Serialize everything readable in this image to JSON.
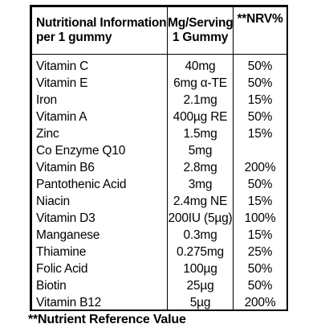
{
  "header": {
    "name_line1": "Nutritional Information",
    "name_line2": "per 1 gummy",
    "amount_line1": "Mg/Serving",
    "amount_line2": "1 Gummy",
    "nrv": "**NRV%"
  },
  "rows": [
    {
      "name": "Vitamin C",
      "amount": "40mg",
      "nrv": "50%"
    },
    {
      "name": "Vitamin E",
      "amount": "6mg α-TE",
      "nrv": "50%"
    },
    {
      "name": "Iron",
      "amount": "2.1mg",
      "nrv": "15%"
    },
    {
      "name": "Vitamin A",
      "amount": "400µg RE",
      "nrv": "50%"
    },
    {
      "name": "Zinc",
      "amount": "1.5mg",
      "nrv": "15%"
    },
    {
      "name": "Co Enzyme Q10",
      "amount": "5mg",
      "nrv": ""
    },
    {
      "name": "Vitamin B6",
      "amount": "2.8mg",
      "nrv": "200%"
    },
    {
      "name": "Pantothenic Acid",
      "amount": "3mg",
      "nrv": "50%"
    },
    {
      "name": "Niacin",
      "amount": "2.4mg NE",
      "nrv": "15%"
    },
    {
      "name": "Vitamin D3",
      "amount": "200IU (5µg)",
      "nrv": "100%"
    },
    {
      "name": "Manganese",
      "amount": "0.3mg",
      "nrv": "15%"
    },
    {
      "name": "Thiamine",
      "amount": "0.275mg",
      "nrv": "25%"
    },
    {
      "name": "Folic Acid",
      "amount": "100µg",
      "nrv": "50%"
    },
    {
      "name": "Biotin",
      "amount": "25µg",
      "nrv": "50%"
    },
    {
      "name": "Vitamin B12",
      "amount": "5µg",
      "nrv": "200%"
    }
  ],
  "footnote": "**Nutrient Reference Value"
}
